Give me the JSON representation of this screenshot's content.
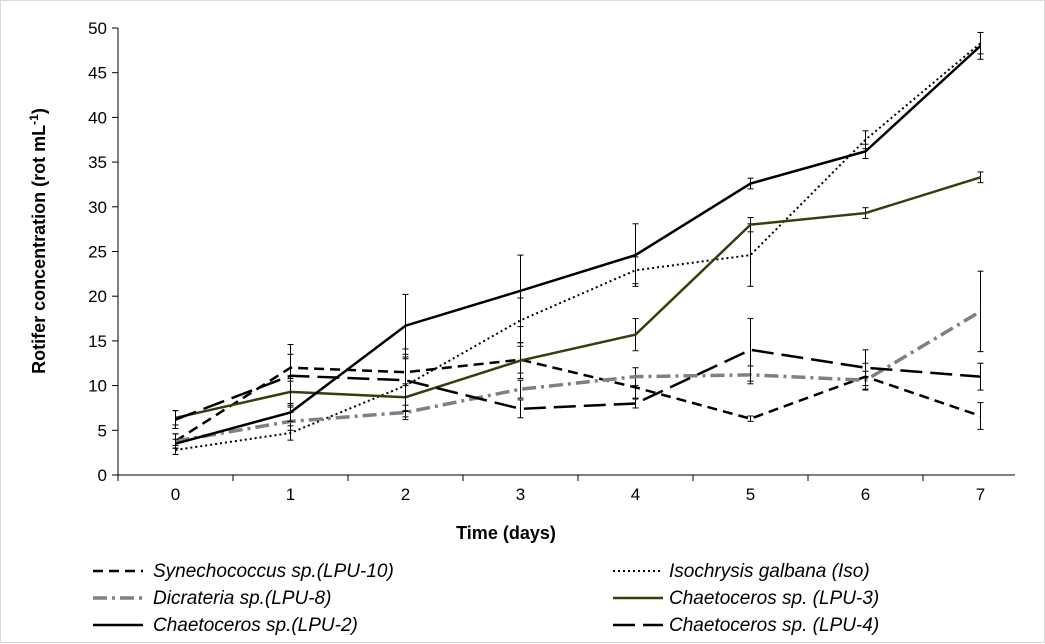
{
  "chart_data": {
    "type": "line",
    "title": "",
    "xlabel": "Time (days)",
    "ylabel_main": "Rotifer concentration (rot mL",
    "ylabel_sup": "-1",
    "ylabel_close": ")",
    "x": [
      0,
      1,
      2,
      3,
      4,
      5,
      6,
      7
    ],
    "xlim": [
      -0.5,
      7.3
    ],
    "ylim": [
      0,
      50
    ],
    "x_ticks": [
      "0",
      "1",
      "2",
      "3",
      "4",
      "5",
      "6",
      "7"
    ],
    "y_ticks": [
      "0",
      "5",
      "10",
      "15",
      "20",
      "25",
      "30",
      "35",
      "40",
      "45",
      "50"
    ],
    "grid": false,
    "legend_position": "bottom",
    "series": [
      {
        "name": "Synechococcus sp.(LPU-10)",
        "color": "#000000",
        "style": "short-dash",
        "values": [
          3.8,
          12.0,
          11.5,
          12.9,
          9.8,
          6.3,
          11.0,
          6.6
        ],
        "errors": [
          0.8,
          1.5,
          1.5,
          1.5,
          1.2,
          0.3,
          1.5,
          1.5
        ]
      },
      {
        "name": "Isochrysis galbana (Iso)",
        "color": "#000000",
        "style": "dotted",
        "values": [
          2.8,
          4.7,
          10.0,
          17.3,
          22.9,
          24.6,
          37.5,
          48.3
        ],
        "errors": [
          0.5,
          0.8,
          3.5,
          2.5,
          1.5,
          3.5,
          1.0,
          1.2
        ]
      },
      {
        "name": "Dicrateria sp.(LPU-8)",
        "color": "#808080",
        "style": "dash-dot",
        "values": [
          3.8,
          6.0,
          7.0,
          9.6,
          11.0,
          11.2,
          10.6,
          18.3
        ],
        "errors": [
          0.8,
          1.0,
          0.8,
          1.0,
          1.0,
          1.0,
          1.0,
          4.5
        ]
      },
      {
        "name": "Chaetoceros sp. (LPU-3)",
        "color": "#3d3a10",
        "style": "solid",
        "values": [
          6.4,
          9.3,
          8.7,
          12.8,
          15.7,
          28.0,
          29.3,
          33.3
        ],
        "errors": [
          0.8,
          1.5,
          1.5,
          2.0,
          1.8,
          0.8,
          0.6,
          0.6
        ]
      },
      {
        "name": "Chaetoceros sp.(LPU-2)",
        "color": "#000000",
        "style": "solid",
        "values": [
          3.5,
          7.0,
          16.7,
          20.6,
          24.6,
          32.6,
          36.2,
          48.0
        ],
        "errors": [
          0.5,
          1.0,
          3.5,
          4.0,
          3.5,
          0.6,
          0.8,
          1.5
        ]
      },
      {
        "name": "Chaetoceros sp. (LPU-4)",
        "color": "#000000",
        "style": "long-dash",
        "values": [
          6.2,
          11.1,
          10.6,
          7.4,
          8.0,
          14.0,
          12.0,
          11.0
        ],
        "errors": [
          1.0,
          3.5,
          3.5,
          1.0,
          0.5,
          3.5,
          2.0,
          1.5
        ]
      }
    ]
  }
}
